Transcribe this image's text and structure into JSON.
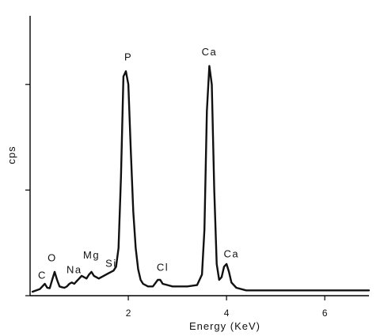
{
  "chart_data": {
    "type": "line",
    "title": "",
    "xlabel": "Energy (KeV)",
    "ylabel": "cps",
    "xlim": [
      0.0,
      6.9
    ],
    "ylim": [
      0,
      100
    ],
    "xticks": [
      2,
      4,
      6
    ],
    "xtick_labels": [
      "2",
      "4",
      "6"
    ],
    "yticks": [
      0,
      40,
      80
    ],
    "ytick_labels": [
      "",
      "",
      ""
    ],
    "grid": false,
    "legend": "none",
    "series": [
      {
        "x": [
          0.05,
          0.2,
          0.3,
          0.35,
          0.4,
          0.45,
          0.5,
          0.55,
          0.6,
          0.65,
          0.7,
          0.75,
          0.8,
          0.85,
          0.9,
          0.95,
          1.0,
          1.05,
          1.1,
          1.15,
          1.2,
          1.25,
          1.3,
          1.4,
          1.5,
          1.6,
          1.7,
          1.75,
          1.8,
          1.85,
          1.9,
          1.95,
          2.0,
          2.05,
          2.1,
          2.15,
          2.2,
          2.25,
          2.3,
          2.4,
          2.5,
          2.6,
          2.65,
          2.7,
          2.8,
          2.9,
          3.0,
          3.2,
          3.4,
          3.5,
          3.55,
          3.6,
          3.65,
          3.7,
          3.75,
          3.8,
          3.85,
          3.9,
          3.95,
          4.0,
          4.05,
          4.1,
          4.2,
          4.4,
          4.8,
          5.2,
          5.6,
          6.0,
          6.4,
          6.9
        ],
        "values": [
          1.5,
          2.5,
          4.5,
          3.0,
          2.8,
          6.0,
          9.0,
          6.0,
          3.5,
          3.2,
          3.0,
          3.5,
          4.5,
          5.0,
          4.5,
          5.5,
          6.5,
          7.5,
          7.0,
          6.5,
          8.0,
          9.0,
          7.5,
          6.5,
          7.5,
          8.5,
          9.5,
          11.0,
          18.0,
          45.0,
          83.0,
          85.0,
          80.0,
          55.0,
          32.0,
          18.0,
          10.0,
          6.0,
          4.5,
          3.5,
          3.5,
          6.0,
          6.0,
          4.5,
          4.0,
          3.5,
          3.5,
          3.5,
          4.0,
          8.0,
          25.0,
          70.0,
          87.0,
          80.0,
          40.0,
          12.0,
          6.0,
          7.0,
          11.0,
          12.0,
          9.0,
          5.0,
          3.0,
          2.0,
          2.0,
          2.0,
          2.0,
          2.0,
          2.0,
          2.0
        ]
      }
    ],
    "annotations": [
      {
        "text": "C",
        "x": 0.25,
        "y": 6.5
      },
      {
        "text": "O",
        "x": 0.45,
        "y": 13.0
      },
      {
        "text": "Na",
        "x": 0.9,
        "y": 8.5
      },
      {
        "text": "Mg",
        "x": 1.25,
        "y": 14.0
      },
      {
        "text": "Si",
        "x": 1.65,
        "y": 11.0
      },
      {
        "text": "P",
        "x": 2.0,
        "y": 89.0
      },
      {
        "text": "Cl",
        "x": 2.7,
        "y": 9.5
      },
      {
        "text": "Ca",
        "x": 3.65,
        "y": 91.0
      },
      {
        "text": "Ca",
        "x": 4.1,
        "y": 14.5
      }
    ]
  }
}
